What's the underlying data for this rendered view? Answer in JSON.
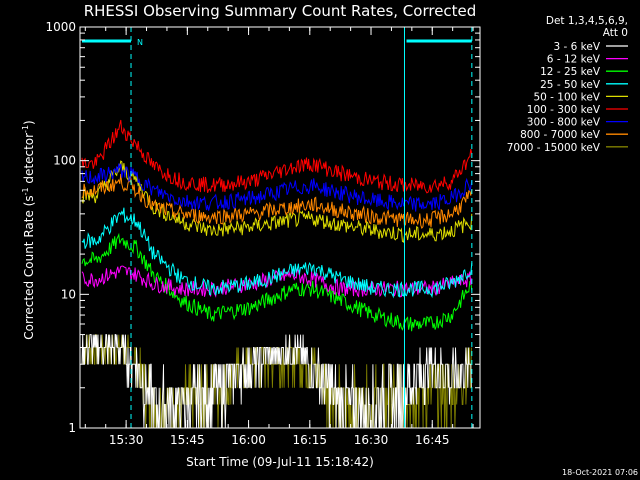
{
  "chart_data": {
    "type": "line",
    "title": "RHESSI Observing Summary Count Rates, Corrected",
    "xlabel": "Start Time (09-Jul-11 15:18:42)",
    "ylabel_main": "Corrected Count Rate (s",
    "ylabel_sup1": "-1",
    "ylabel_mid": " detector",
    "ylabel_sup2": "-1",
    "ylabel_end": ")",
    "y_scale": "log",
    "ylim": [
      1,
      1000
    ],
    "x_range_minutes": [
      "15:18:42",
      "16:56:00"
    ],
    "x_ticks": [
      "15:30",
      "15:45",
      "16:00",
      "16:15",
      "16:30",
      "16:45"
    ],
    "y_ticks": [
      "1",
      "10",
      "100",
      "1000"
    ],
    "legend_header": [
      "Det 1,3,4,5,6,9,",
      "Att 0"
    ],
    "series": [
      {
        "name": "3 - 6 keV",
        "color": "#ffffff",
        "values": [
          4,
          4,
          3,
          1.5,
          1.5,
          2,
          3,
          4,
          3,
          1.5,
          1.5,
          2,
          3,
          2.5,
          3
        ]
      },
      {
        "name": "6 - 12 keV",
        "color": "#ff00ff",
        "values": [
          13,
          15,
          14,
          12,
          11,
          11,
          12,
          14,
          13,
          11,
          11,
          11,
          11,
          12,
          13
        ]
      },
      {
        "name": "12 - 25 keV",
        "color": "#00ff00",
        "values": [
          18,
          26,
          22,
          14,
          9,
          7,
          8,
          11,
          11,
          9,
          7,
          6,
          6,
          7,
          12
        ]
      },
      {
        "name": "25 - 50 keV",
        "color": "#00ffff",
        "values": [
          25,
          40,
          35,
          20,
          13,
          11,
          12,
          15,
          16,
          13,
          11,
          11,
          11,
          12,
          16
        ]
      },
      {
        "name": "50 - 100 keV",
        "color": "#dddd00",
        "values": [
          55,
          90,
          70,
          45,
          35,
          30,
          32,
          36,
          37,
          33,
          30,
          28,
          28,
          30,
          35
        ]
      },
      {
        "name": "100 - 300 keV",
        "color": "#ff0000",
        "values": [
          95,
          180,
          130,
          90,
          70,
          65,
          70,
          90,
          95,
          80,
          70,
          65,
          65,
          70,
          110
        ]
      },
      {
        "name": "300 - 800 keV",
        "color": "#0000ff",
        "values": [
          75,
          85,
          75,
          60,
          50,
          48,
          52,
          62,
          65,
          57,
          50,
          47,
          47,
          52,
          70
        ]
      },
      {
        "name": "800 - 7000 keV",
        "color": "#ff8800",
        "values": [
          60,
          70,
          60,
          45,
          40,
          38,
          40,
          45,
          47,
          42,
          38,
          36,
          36,
          40,
          55
        ]
      },
      {
        "name": "7000 - 15000 keV",
        "color": "#808000",
        "values": [
          4,
          4,
          3,
          1.5,
          1.5,
          2,
          3,
          3.5,
          3,
          1.5,
          1.5,
          2,
          2,
          2,
          3
        ]
      }
    ],
    "x_values_minutes": [
      4,
      10,
      14,
      18,
      25,
      32,
      42,
      52,
      57,
      64,
      72,
      80,
      86,
      91,
      96
    ],
    "attenuator_marker": "N",
    "footer_date": "18-Oct-2021 07:06"
  }
}
